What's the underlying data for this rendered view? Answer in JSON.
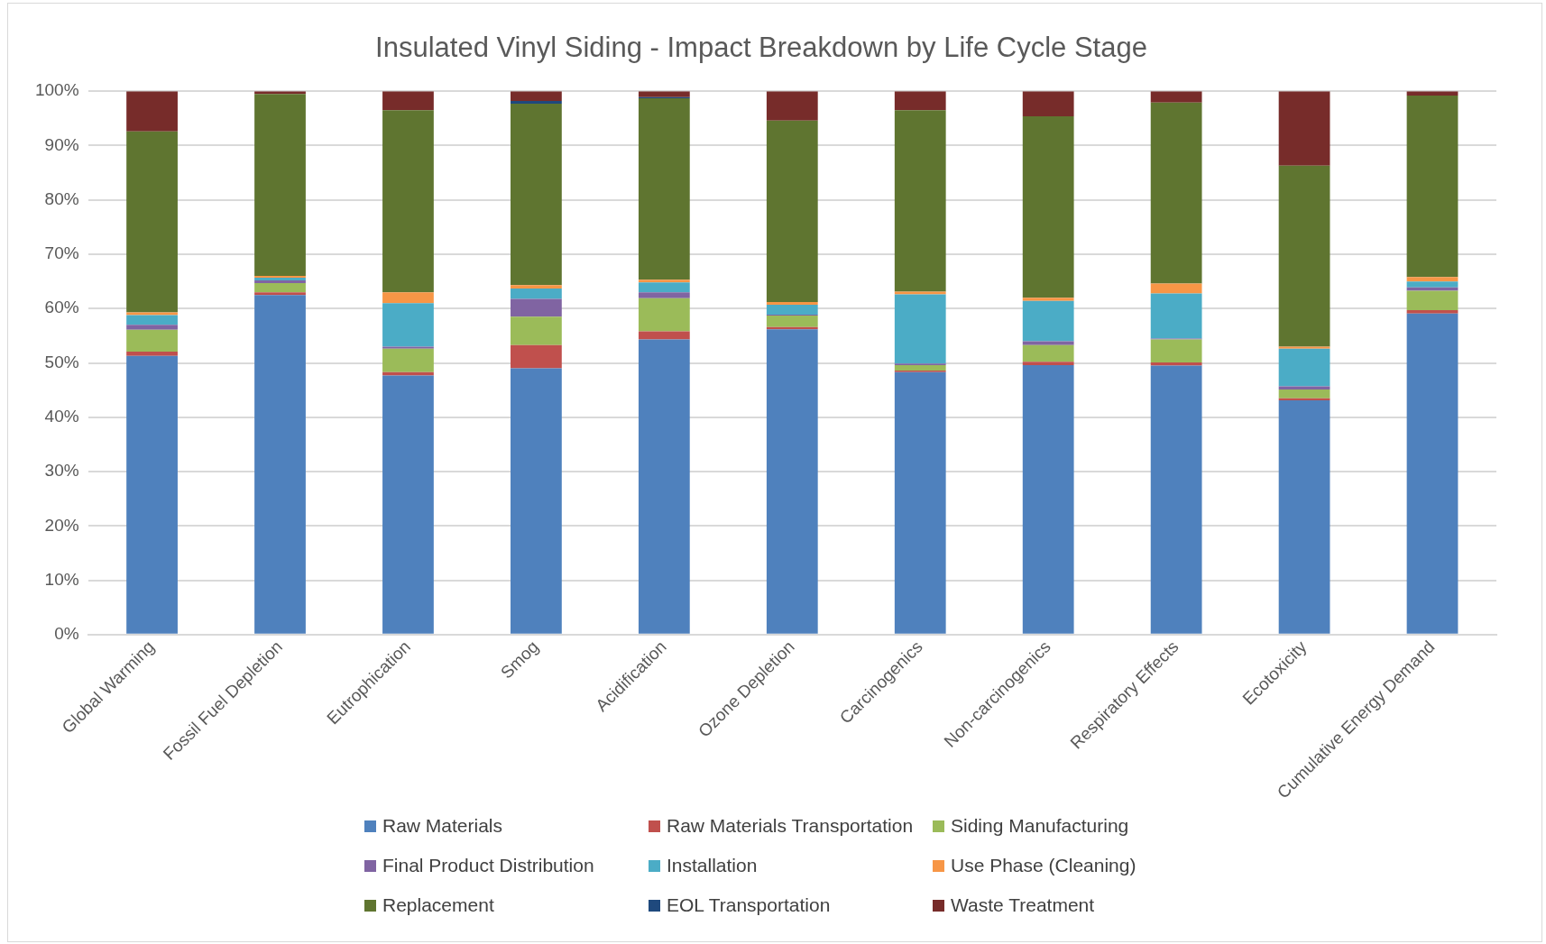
{
  "chart_data": {
    "type": "bar",
    "title": "Insulated Vinyl Siding - Impact Breakdown by Life Cycle Stage",
    "stacked": true,
    "legend": "bottom",
    "grid": "y",
    "categories": [
      "Global Warming",
      "Fossil Fuel Depletion",
      "Eutrophication",
      "Smog",
      "Acidification",
      "Ozone Depletion",
      "Carcinogenics",
      "Non-carcinogenics",
      "Respiratory Effects",
      "Ecotoxicity",
      "Cumulative Energy Demand"
    ],
    "ylim": [
      0,
      100
    ],
    "yticks": [
      {
        "value": 0,
        "label": "0%"
      },
      {
        "value": 10,
        "label": "10%"
      },
      {
        "value": 20,
        "label": "20%"
      },
      {
        "value": 30,
        "label": "30%"
      },
      {
        "value": 40,
        "label": "40%"
      },
      {
        "value": 50,
        "label": "50%"
      },
      {
        "value": 60,
        "label": "60%"
      },
      {
        "value": 70,
        "label": "70%"
      },
      {
        "value": 80,
        "label": "80%"
      },
      {
        "value": 90,
        "label": "90%"
      },
      {
        "value": 100,
        "label": "100%"
      }
    ],
    "series": [
      {
        "name": "Raw Materials",
        "color": "#4f81bd",
        "values": [
          51.3,
          62.5,
          47.7,
          49.0,
          54.3,
          56.2,
          48.3,
          49.6,
          49.5,
          43.1,
          59.1
        ]
      },
      {
        "name": "Raw Materials Transportation",
        "color": "#c0504d",
        "values": [
          0.8,
          0.5,
          0.6,
          4.3,
          1.5,
          0.4,
          0.3,
          0.6,
          0.6,
          0.4,
          0.6
        ]
      },
      {
        "name": "Siding Manufacturing",
        "color": "#9bbb59",
        "values": [
          4.0,
          1.7,
          4.3,
          5.2,
          6.1,
          2.1,
          1.0,
          3.1,
          4.2,
          1.6,
          3.6
        ]
      },
      {
        "name": "Final Product Distribution",
        "color": "#8064a2",
        "values": [
          0.9,
          0.5,
          0.4,
          3.3,
          1.1,
          0.2,
          0.3,
          0.7,
          0.2,
          0.6,
          0.6
        ]
      },
      {
        "name": "Installation",
        "color": "#4bacc6",
        "values": [
          1.8,
          0.5,
          8.0,
          1.9,
          1.8,
          1.8,
          12.7,
          7.4,
          8.3,
          6.9,
          1.1
        ]
      },
      {
        "name": "Use Phase (Cleaning)",
        "color": "#f79646",
        "values": [
          0.5,
          0.3,
          2.0,
          0.6,
          0.5,
          0.5,
          0.5,
          0.6,
          1.8,
          0.4,
          0.8
        ]
      },
      {
        "name": "Replacement",
        "color": "#5f7530",
        "values": [
          33.3,
          33.5,
          33.5,
          33.4,
          33.4,
          33.4,
          33.4,
          33.4,
          33.3,
          33.3,
          33.4
        ]
      },
      {
        "name": "EOL Transportation",
        "color": "#1f497d",
        "values": [
          null,
          null,
          null,
          0.5,
          0.2,
          null,
          null,
          null,
          null,
          null,
          null
        ]
      },
      {
        "name": "Waste Treatment",
        "color": "#772c2a",
        "values": [
          7.4,
          0.5,
          3.5,
          1.8,
          1.1,
          5.4,
          3.5,
          4.6,
          2.1,
          13.7,
          0.8
        ]
      }
    ]
  }
}
